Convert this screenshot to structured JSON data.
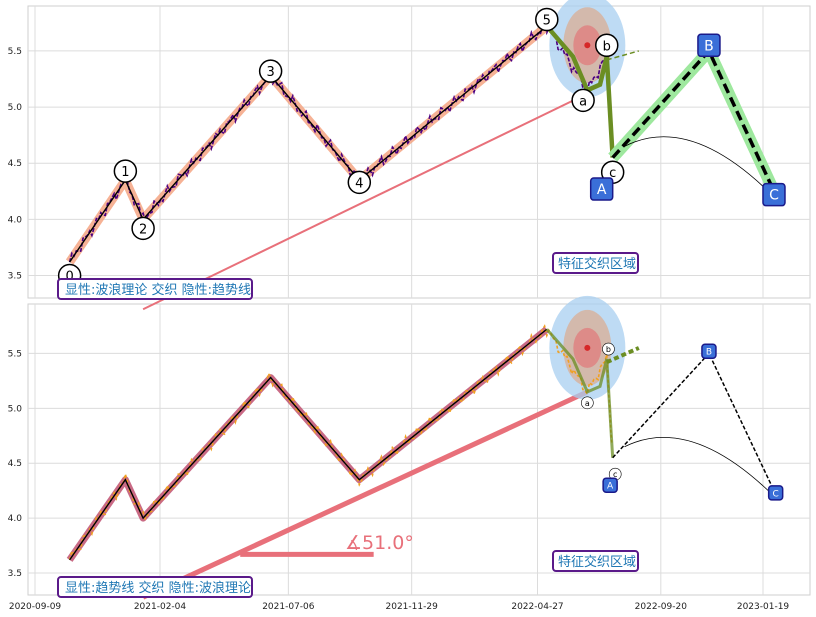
{
  "chart_data": [
    {
      "type": "line",
      "panel": "top",
      "legend_text": "显性:波浪理论 交织 隐性:趋势线",
      "zone_label": "特征交织区域",
      "ylim": [
        3.3,
        5.9
      ],
      "yticks": [
        "3.5",
        "4.0",
        "4.5",
        "5.0",
        "5.5"
      ],
      "grid": true,
      "wave_labels": [
        {
          "label": "0",
          "date": "2020-10-20",
          "y": 3.5
        },
        {
          "label": "1",
          "date": "2020-12-25",
          "y": 4.43
        },
        {
          "label": "2",
          "date": "2021-01-15",
          "y": 3.92
        },
        {
          "label": "3",
          "date": "2021-06-15",
          "y": 5.32
        },
        {
          "label": "4",
          "date": "2021-09-28",
          "y": 4.33
        },
        {
          "label": "5",
          "date": "2022-05-08",
          "y": 5.78
        },
        {
          "label": "a",
          "date": "2022-06-20",
          "y": 5.06
        },
        {
          "label": "b",
          "date": "2022-07-18",
          "y": 5.55
        },
        {
          "label": "c",
          "date": "2022-07-25",
          "y": 4.42
        },
        {
          "label": "A",
          "date": "2022-07-12",
          "y": 4.27
        },
        {
          "label": "B",
          "date": "2022-11-16",
          "y": 5.55
        },
        {
          "label": "C",
          "date": "2023-02-01",
          "y": 4.22
        }
      ]
    },
    {
      "type": "line",
      "panel": "bottom",
      "legend_text": "显性:趋势线 交织 隐性:波浪理论",
      "zone_label": "特征交织区域",
      "angle_label": "∡51.0°",
      "ylim": [
        3.3,
        5.95
      ],
      "yticks": [
        "3.5",
        "4.0",
        "4.5",
        "5.0",
        "5.5"
      ],
      "grid": true,
      "xticks": [
        "2020-09-09",
        "2021-02-04",
        "2021-07-06",
        "2021-11-29",
        "2022-04-27",
        "2022-09-20",
        "2023-01-19"
      ],
      "wave_labels": [
        {
          "label": "a",
          "date": "2022-06-25",
          "y": 5.05
        },
        {
          "label": "b",
          "date": "2022-07-20",
          "y": 5.54
        },
        {
          "label": "c",
          "date": "2022-07-28",
          "y": 4.4
        },
        {
          "label": "A",
          "date": "2022-07-22",
          "y": 4.3
        },
        {
          "label": "B",
          "date": "2022-11-16",
          "y": 5.52
        },
        {
          "label": "C",
          "date": "2023-02-03",
          "y": 4.23
        }
      ]
    }
  ],
  "colors": {
    "price_top": "#4b0082",
    "price_bottom": "#f0a020",
    "wave": "#000000",
    "wave_glow": "#f4a582",
    "trend": "#e8707a",
    "projection": "#6b8e23",
    "label_box": "#3a6fd8",
    "legend_border": "#5a1a8a",
    "legend_text": "#1f77b4"
  }
}
